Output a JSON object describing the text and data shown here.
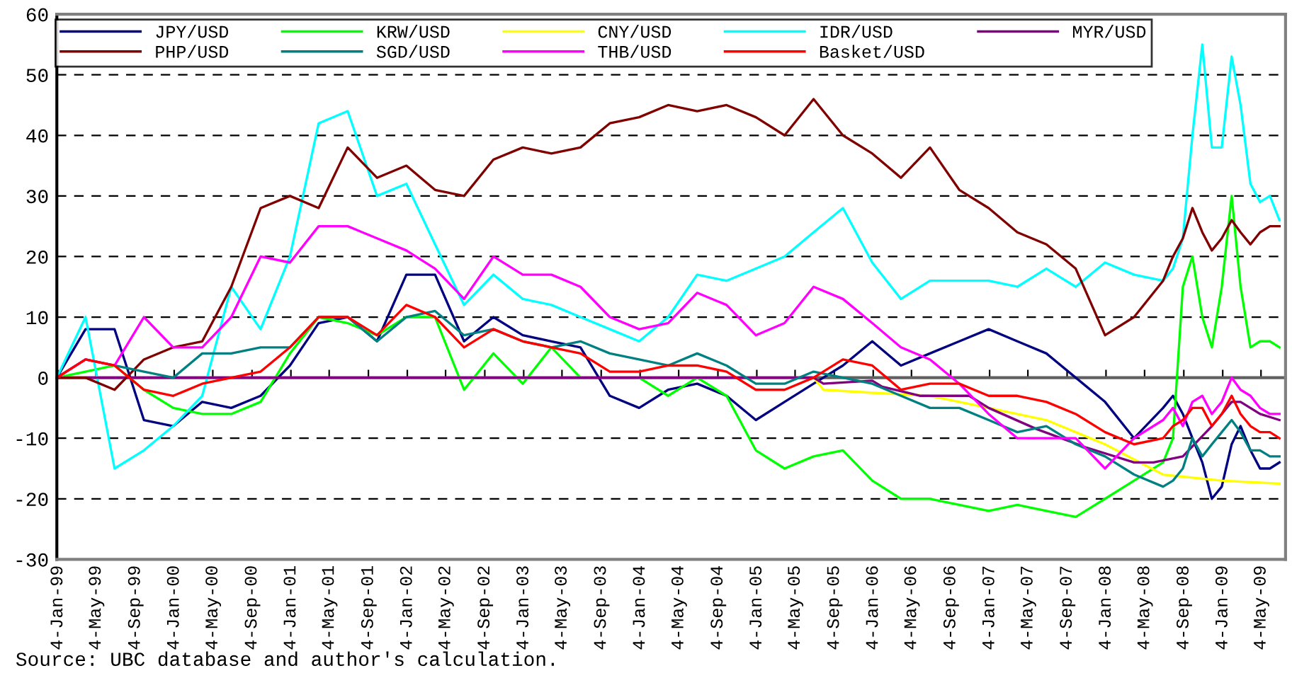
{
  "chart_data": {
    "type": "line",
    "annotations": [
      "Source: UBC database and author's calculation."
    ],
    "x": [
      "1999-01",
      "1999-04",
      "1999-07",
      "1999-10",
      "2000-01",
      "2000-04",
      "2000-07",
      "2000-10",
      "2001-01",
      "2001-04",
      "2001-07",
      "2001-10",
      "2002-01",
      "2002-04",
      "2002-07",
      "2002-10",
      "2003-01",
      "2003-04",
      "2003-07",
      "2003-10",
      "2004-01",
      "2004-04",
      "2004-07",
      "2004-10",
      "2005-01",
      "2005-04",
      "2005-07",
      "2005-10",
      "2006-01",
      "2006-04",
      "2006-07",
      "2006-10",
      "2007-01",
      "2007-04",
      "2007-07",
      "2007-10",
      "2008-01",
      "2008-04",
      "2008-07",
      "2008-08",
      "2008-09",
      "2008-10",
      "2008-11",
      "2008-12",
      "2009-01",
      "2009-02",
      "2009-03",
      "2009-04",
      "2009-05",
      "2009-06",
      "2009-07"
    ],
    "series": [
      {
        "name": "JPY/USD",
        "color": "#000080",
        "values": [
          0,
          8,
          8,
          -7,
          -8,
          -4,
          -5,
          -3,
          2,
          9,
          10,
          6,
          17,
          17,
          6,
          10,
          7,
          6,
          5,
          -3,
          -5,
          -2,
          -1,
          -3,
          -7,
          -4,
          -1,
          2,
          6,
          2,
          4,
          6,
          8,
          6,
          4,
          0,
          -4,
          -10,
          -5,
          -3,
          -6,
          -10,
          -14,
          -20,
          -18,
          -11,
          -8,
          -12,
          -15,
          -15,
          -14
        ]
      },
      {
        "name": "KRW/USD",
        "color": "#00ff00",
        "values": [
          0,
          1,
          2,
          -2,
          -5,
          -6,
          -6,
          -4,
          4,
          10,
          9,
          7,
          10,
          10,
          -2,
          4,
          -1,
          5,
          0,
          0,
          0,
          -3,
          0,
          -3,
          -12,
          -15,
          -13,
          -12,
          -17,
          -20,
          -20,
          -21,
          -22,
          -21,
          -22,
          -23,
          -20,
          -17,
          -14,
          -10,
          15,
          20,
          10,
          5,
          15,
          30,
          15,
          5,
          6,
          6,
          5
        ]
      },
      {
        "name": "CNY/USD",
        "color": "#ffff00",
        "x": [
          "2005-07",
          "2005-08",
          "2006-01",
          "2006-07",
          "2007-01",
          "2007-07",
          "2008-01",
          "2008-07",
          "2009-01",
          "2009-07"
        ],
        "values": [
          0,
          -2,
          -2.5,
          -3,
          -5,
          -7,
          -11,
          -16,
          -17,
          -17.5
        ]
      },
      {
        "name": "IDR/USD",
        "color": "#00ffff",
        "values": [
          0,
          10,
          -15,
          -12,
          -8,
          -3,
          15,
          8,
          20,
          42,
          44,
          30,
          32,
          22,
          12,
          17,
          13,
          12,
          10,
          8,
          6,
          10,
          17,
          16,
          18,
          20,
          24,
          28,
          19,
          13,
          16,
          16,
          16,
          15,
          18,
          15,
          19,
          17,
          16,
          18,
          23,
          40,
          55,
          38,
          38,
          53,
          45,
          32,
          29,
          30,
          26
        ]
      },
      {
        "name": "MYR/USD",
        "color": "#800080",
        "x": [
          "1999-01",
          "2005-07",
          "2005-08",
          "2006-01",
          "2006-02",
          "2006-06",
          "2006-11",
          "2007-01",
          "2007-06",
          "2007-11",
          "2008-04",
          "2008-06",
          "2008-09",
          "2008-12",
          "2009-02",
          "2009-03",
          "2009-05",
          "2009-06",
          "2009-07"
        ],
        "values": [
          0,
          0,
          -1,
          -0.5,
          -1.5,
          -3,
          -3,
          -5,
          -8.5,
          -11.5,
          -14,
          -14,
          -13,
          -8,
          -4,
          -4,
          -6,
          -6.5,
          -7
        ]
      },
      {
        "name": "PHP/USD",
        "color": "#800000",
        "values": [
          0,
          0,
          -2,
          3,
          5,
          6,
          15,
          28,
          30,
          28,
          38,
          33,
          35,
          31,
          30,
          36,
          38,
          37,
          38,
          42,
          43,
          45,
          44,
          45,
          43,
          40,
          46,
          40,
          37,
          33,
          38,
          31,
          28,
          24,
          22,
          18,
          7,
          10,
          16,
          20,
          23,
          28,
          24,
          21,
          23,
          26,
          24,
          22,
          24,
          25,
          25
        ]
      },
      {
        "name": "SGD/USD",
        "color": "#008080",
        "values": [
          0,
          3,
          2,
          1,
          0,
          4,
          4,
          5,
          5,
          10,
          10,
          6,
          10,
          11,
          7,
          8,
          6,
          5,
          6,
          4,
          3,
          2,
          4,
          2,
          -1,
          -1,
          1,
          0,
          -1,
          -3,
          -5,
          -5,
          -7,
          -9,
          -8,
          -11,
          -13,
          -16,
          -18,
          -17,
          -15,
          -10,
          -13,
          -11,
          -9,
          -7,
          -9,
          -12,
          -12,
          -13,
          -13
        ]
      },
      {
        "name": "THB/USD",
        "color": "#ff00ff",
        "values": [
          0,
          3,
          2,
          10,
          5,
          5,
          10,
          20,
          19,
          25,
          25,
          23,
          21,
          18,
          13,
          20,
          17,
          17,
          15,
          10,
          8,
          9,
          14,
          12,
          7,
          9,
          15,
          13,
          9,
          5,
          3,
          -1,
          -6,
          -10,
          -10,
          -10,
          -15,
          -10,
          -7,
          -5,
          -8,
          -4,
          -3,
          -6,
          -4,
          0,
          -2,
          -3,
          -5,
          -6,
          -6
        ]
      },
      {
        "name": "Basket/USD",
        "color": "#ff0000",
        "values": [
          0,
          3,
          2,
          -2,
          -3,
          -1,
          0,
          1,
          5,
          10,
          10,
          7,
          12,
          10,
          5,
          8,
          6,
          5,
          4,
          1,
          1,
          2,
          2,
          1,
          -2,
          -2,
          0,
          3,
          2,
          -2,
          -1,
          -1,
          -3,
          -3,
          -4,
          -6,
          -9,
          -11,
          -10,
          -8,
          -7,
          -5,
          -5,
          -8,
          -6,
          -3,
          -6,
          -8,
          -9,
          -9,
          -10
        ]
      }
    ],
    "xlim": [
      "1999-01-01",
      "2009-07-20"
    ],
    "xticks": [
      {
        "value": "1999-01-04",
        "label": "4-Jan-99"
      },
      {
        "value": "1999-05-04",
        "label": "4-May-99"
      },
      {
        "value": "1999-09-04",
        "label": "4-Sep-99"
      },
      {
        "value": "2000-01-04",
        "label": "4-Jan-00"
      },
      {
        "value": "2000-05-04",
        "label": "4-May-00"
      },
      {
        "value": "2000-09-04",
        "label": "4-Sep-00"
      },
      {
        "value": "2001-01-04",
        "label": "4-Jan-01"
      },
      {
        "value": "2001-05-04",
        "label": "4-May-01"
      },
      {
        "value": "2001-09-04",
        "label": "4-Sep-01"
      },
      {
        "value": "2002-01-04",
        "label": "4-Jan-02"
      },
      {
        "value": "2002-05-04",
        "label": "4-May-02"
      },
      {
        "value": "2002-09-04",
        "label": "4-Sep-02"
      },
      {
        "value": "2003-01-04",
        "label": "4-Jan-03"
      },
      {
        "value": "2003-05-04",
        "label": "4-May-03"
      },
      {
        "value": "2003-09-04",
        "label": "4-Sep-03"
      },
      {
        "value": "2004-01-04",
        "label": "4-Jan-04"
      },
      {
        "value": "2004-05-04",
        "label": "4-May-04"
      },
      {
        "value": "2004-09-04",
        "label": "4-Sep-04"
      },
      {
        "value": "2005-01-04",
        "label": "4-Jan-05"
      },
      {
        "value": "2005-05-04",
        "label": "4-May-05"
      },
      {
        "value": "2005-09-04",
        "label": "4-Sep-05"
      },
      {
        "value": "2006-01-04",
        "label": "4-Jan-06"
      },
      {
        "value": "2006-05-04",
        "label": "4-May-06"
      },
      {
        "value": "2006-09-04",
        "label": "4-Sep-06"
      },
      {
        "value": "2007-01-04",
        "label": "4-Jan-07"
      },
      {
        "value": "2007-05-04",
        "label": "4-May-07"
      },
      {
        "value": "2007-09-04",
        "label": "4-Sep-07"
      },
      {
        "value": "2008-01-04",
        "label": "4-Jan-08"
      },
      {
        "value": "2008-05-04",
        "label": "4-May-08"
      },
      {
        "value": "2008-09-04",
        "label": "4-Sep-08"
      },
      {
        "value": "2009-01-04",
        "label": "4-Jan-09"
      },
      {
        "value": "2009-05-04",
        "label": "4-May-09"
      }
    ],
    "ylim": [
      -30,
      60
    ],
    "yticks": [
      -30,
      -20,
      -10,
      0,
      10,
      20,
      30,
      40,
      50,
      60
    ],
    "grid": "y",
    "legend": "top",
    "marker": "none",
    "line_style": "solid"
  }
}
